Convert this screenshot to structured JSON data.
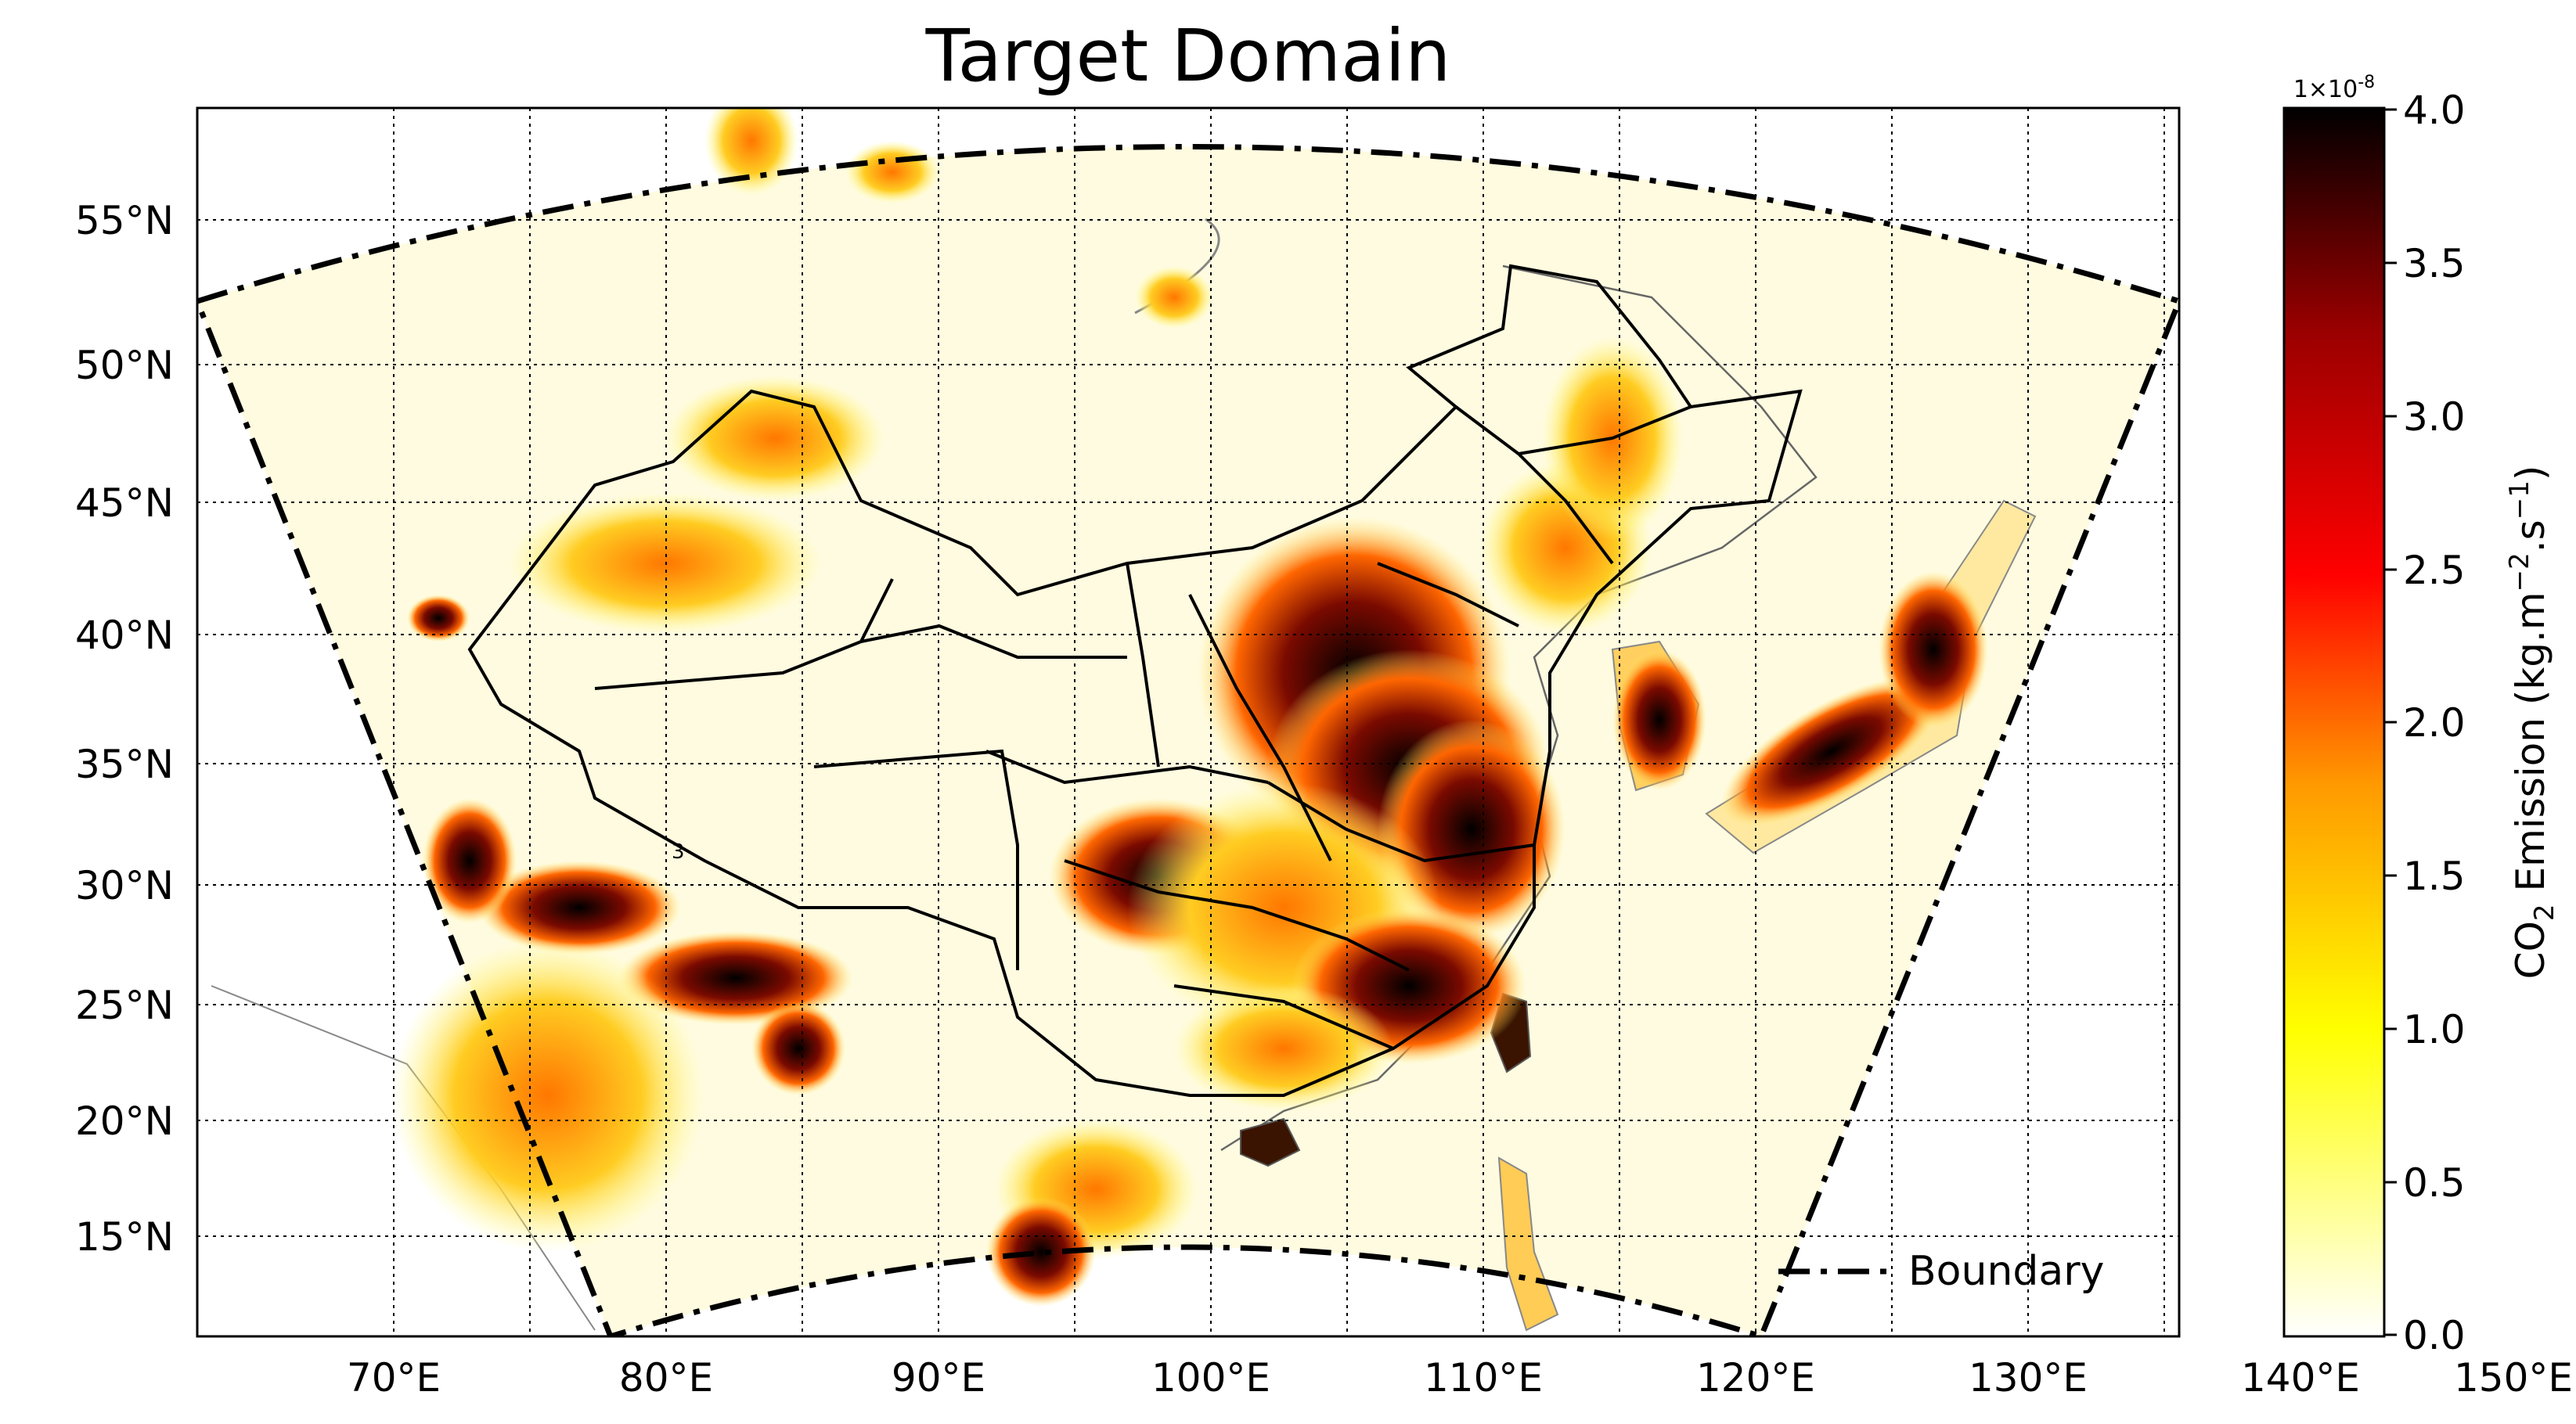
{
  "title": "Target Domain",
  "map": {
    "lon_ticks": [
      "70°E",
      "80°E",
      "90°E",
      "100°E",
      "110°E",
      "120°E",
      "130°E",
      "140°E",
      "150°E"
    ],
    "lat_ticks": [
      "55°N",
      "50°N",
      "45°N",
      "40°N",
      "35°N",
      "30°N",
      "25°N",
      "20°N",
      "15°N"
    ],
    "region_label": "3",
    "legend": {
      "boundary_label": "Boundary"
    },
    "grid": "on, dotted"
  },
  "colorbar": {
    "multiplier": "1×10",
    "multiplier_exp": "-8",
    "ticks": [
      "4.0",
      "3.5",
      "3.0",
      "2.5",
      "2.0",
      "1.5",
      "1.0",
      "0.5",
      "0.0"
    ],
    "label_main": "CO",
    "label_sub": "2",
    "label_rest": " Emission (kg.m",
    "label_exp1": "−2",
    "label_mid": ".s",
    "label_exp2": "−1",
    "label_end": ")",
    "colors": [
      "#ffffff",
      "#ffff00",
      "#ff9900",
      "#ff0000",
      "#990000",
      "#000000"
    ]
  }
}
